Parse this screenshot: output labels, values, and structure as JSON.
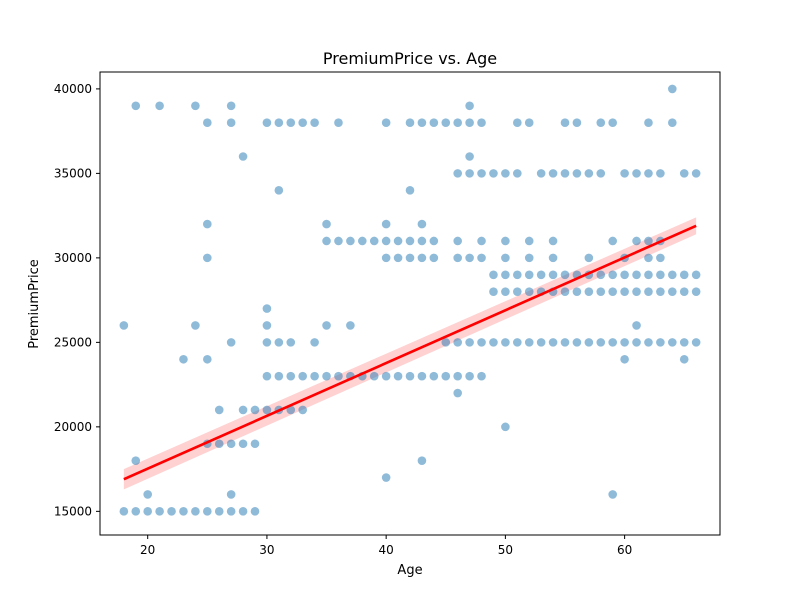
{
  "chart_data": {
    "type": "scatter",
    "title": "PremiumPrice vs. Age",
    "xlabel": "Age",
    "ylabel": "PremiumPrice",
    "xlim": [
      16,
      68
    ],
    "ylim": [
      13600,
      41000
    ],
    "x_ticks": [
      20,
      30,
      40,
      50,
      60
    ],
    "x_tick_labels": [
      "20",
      "30",
      "40",
      "50",
      "60"
    ],
    "y_ticks": [
      15000,
      20000,
      25000,
      30000,
      35000,
      40000
    ],
    "y_tick_labels": [
      "15000",
      "20000",
      "25000",
      "30000",
      "35000",
      "40000"
    ],
    "grid": false,
    "point_color": "#1f77b4",
    "point_alpha": 0.5,
    "regression": {
      "color": "#ff0000",
      "ci_color": "#ffb3b3",
      "x": [
        18,
        66
      ],
      "y": [
        16900,
        31900
      ],
      "ci_low": [
        16300,
        31400
      ],
      "ci_high": [
        17500,
        32400
      ]
    },
    "points_by_price": [
      {
        "y": 15000,
        "x": [
          18,
          19,
          20,
          21,
          22,
          23,
          24,
          25,
          26,
          27,
          28,
          29
        ]
      },
      {
        "y": 16000,
        "x": [
          20,
          27,
          59
        ]
      },
      {
        "y": 17000,
        "x": [
          40
        ]
      },
      {
        "y": 18000,
        "x": [
          19,
          43
        ]
      },
      {
        "y": 19000,
        "x": [
          25,
          26,
          27,
          28,
          29
        ]
      },
      {
        "y": 20000,
        "x": [
          50
        ]
      },
      {
        "y": 21000,
        "x": [
          26,
          28,
          29,
          30,
          31,
          32,
          33
        ]
      },
      {
        "y": 22000,
        "x": [
          46
        ]
      },
      {
        "y": 23000,
        "x": [
          30,
          31,
          32,
          33,
          34,
          35,
          36,
          37,
          38,
          39,
          40,
          41,
          42,
          43,
          44,
          45,
          46,
          47,
          48
        ]
      },
      {
        "y": 24000,
        "x": [
          23,
          25,
          60,
          65
        ]
      },
      {
        "y": 25000,
        "x": [
          27,
          30,
          31,
          32,
          34,
          45,
          46,
          47,
          48,
          49,
          50,
          51,
          52,
          53,
          54,
          55,
          56,
          57,
          58,
          59,
          60,
          61,
          62,
          63,
          64,
          65,
          66
        ]
      },
      {
        "y": 26000,
        "x": [
          18,
          24,
          30,
          35,
          37,
          61
        ]
      },
      {
        "y": 27000,
        "x": [
          30
        ]
      },
      {
        "y": 28000,
        "x": [
          49,
          50,
          51,
          52,
          53,
          54,
          55,
          56,
          57,
          58,
          59,
          60,
          61,
          62,
          63,
          64,
          65,
          66
        ]
      },
      {
        "y": 29000,
        "x": [
          49,
          50,
          51,
          52,
          53,
          54,
          55,
          56,
          57,
          58,
          59,
          60,
          61,
          62,
          63,
          64,
          65,
          66
        ]
      },
      {
        "y": 30000,
        "x": [
          25,
          40,
          41,
          42,
          43,
          44,
          46,
          47,
          48,
          50,
          52,
          54,
          57,
          60,
          62,
          63
        ]
      },
      {
        "y": 31000,
        "x": [
          35,
          36,
          37,
          38,
          39,
          40,
          41,
          42,
          43,
          44,
          46,
          48,
          50,
          52,
          54,
          59,
          61,
          62,
          63
        ]
      },
      {
        "y": 32000,
        "x": [
          25,
          35,
          40,
          43
        ]
      },
      {
        "y": 34000,
        "x": [
          31,
          42
        ]
      },
      {
        "y": 35000,
        "x": [
          46,
          47,
          48,
          49,
          50,
          51,
          53,
          54,
          55,
          56,
          57,
          58,
          60,
          61,
          62,
          63,
          65,
          66
        ]
      },
      {
        "y": 36000,
        "x": [
          28,
          47
        ]
      },
      {
        "y": 38000,
        "x": [
          25,
          27,
          30,
          31,
          32,
          33,
          34,
          36,
          40,
          42,
          43,
          44,
          45,
          46,
          47,
          48,
          51,
          52,
          55,
          56,
          58,
          59,
          62,
          64
        ]
      },
      {
        "y": 39000,
        "x": [
          19,
          21,
          24,
          27,
          47
        ]
      },
      {
        "y": 40000,
        "x": [
          64
        ]
      }
    ]
  }
}
